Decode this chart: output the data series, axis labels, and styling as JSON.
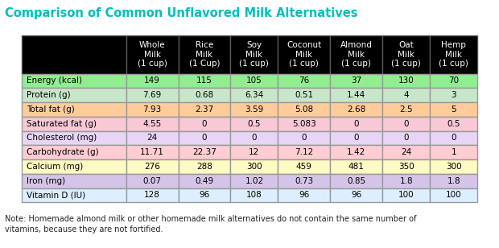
{
  "title": "Comparison of Common Unflavored Milk Alternatives",
  "title_color": "#00BFBF",
  "columns": [
    "",
    "Whole\nMilk\n(1 cup)",
    "Rice\nMilk\n(1 Cup)",
    "Soy\nMilk\n(1 cup)",
    "Coconut\nMilk\n(1 cup)",
    "Almond\nMilk\n(1 cup)",
    "Oat\nMilk\n(1 cup)",
    "Hemp\nMilk\n(1 cup)"
  ],
  "rows": [
    [
      "Energy (kcal)",
      "149",
      "115",
      "105",
      "76",
      "37",
      "130",
      "70"
    ],
    [
      "Protein (g)",
      "7.69",
      "0.68",
      "6.34",
      "0.51",
      "1.44",
      "4",
      "3"
    ],
    [
      "Total fat (g)",
      "7.93",
      "2.37",
      "3.59",
      "5.08",
      "2.68",
      "2.5",
      "5"
    ],
    [
      "Saturated fat (g)",
      "4.55",
      "0",
      "0.5",
      "5.083",
      "0",
      "0",
      "0.5"
    ],
    [
      "Cholesterol (mg)",
      "24",
      "0",
      "0",
      "0",
      "0",
      "0",
      "0"
    ],
    [
      "Carbohydrate (g)",
      "11.71",
      "22.37",
      "12",
      "7.12",
      "1.42",
      "24",
      "1"
    ],
    [
      "Calcium (mg)",
      "276",
      "288",
      "300",
      "459",
      "481",
      "350",
      "300"
    ],
    [
      "Iron (mg)",
      "0.07",
      "0.49",
      "1.02",
      "0.73",
      "0.85",
      "1.8",
      "1.8"
    ],
    [
      "Vitamin D (IU)",
      "128",
      "96",
      "108",
      "96",
      "96",
      "100",
      "100"
    ]
  ],
  "row_colors": [
    "#90EE90",
    "#C8E6C9",
    "#FFCC99",
    "#F8C8D4",
    "#E8D5F5",
    "#FFCDD2",
    "#FFF9C4",
    "#D4C5E8",
    "#DDEEFF"
  ],
  "header_bg": "#000000",
  "header_text": "#FFFFFF",
  "note": "Note: Homemade almond milk or other homemade milk alternatives do not contain the same number of\nvitamins, because they are not fortified.",
  "note_bold": "Note:",
  "background_color": "#FFFFFF"
}
